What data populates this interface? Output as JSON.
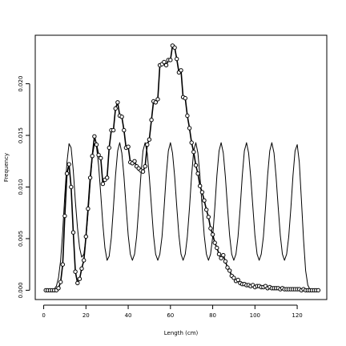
{
  "chart_data": {
    "type": "line",
    "title": "",
    "xlabel": "Length (cm)",
    "ylabel": "Frequency",
    "xlim": [
      -4,
      134
    ],
    "ylim": [
      -0.0009,
      0.0247
    ],
    "x_ticks": [
      0,
      20,
      40,
      60,
      80,
      100,
      120
    ],
    "x_tick_labels": [
      "0",
      "20",
      "40",
      "60",
      "80",
      "100",
      "120"
    ],
    "y_ticks": [
      0.0,
      0.005,
      0.01,
      0.015,
      0.02
    ],
    "y_tick_labels": [
      "0.000",
      "0.005",
      "0.010",
      "0.015",
      "0.020"
    ],
    "grid": false,
    "legend": "none",
    "series": [
      {
        "style": "points-and-lines",
        "color": "#000000",
        "x": [
          1,
          2,
          3,
          4,
          5,
          6,
          7,
          8,
          9,
          10,
          11,
          12,
          13,
          14,
          15,
          16,
          17,
          18,
          19,
          20,
          21,
          22,
          23,
          24,
          25,
          26,
          27,
          28,
          29,
          30,
          31,
          32,
          33,
          34,
          35,
          36,
          37,
          38,
          39,
          40,
          41,
          42,
          43,
          44,
          45,
          46,
          47,
          48,
          49,
          50,
          51,
          52,
          53,
          54,
          55,
          56,
          57,
          58,
          59,
          60,
          61,
          62,
          63,
          64,
          65,
          66,
          67,
          68,
          69,
          70,
          71,
          72,
          73,
          74,
          75,
          76,
          77,
          78,
          79,
          80,
          81,
          82,
          83,
          84,
          85,
          86,
          87,
          88,
          89,
          90,
          91,
          92,
          93,
          94,
          95,
          96,
          97,
          98,
          99,
          100,
          101,
          102,
          103,
          104,
          105,
          106,
          107,
          108,
          109,
          110,
          111,
          112,
          113,
          114,
          115,
          116,
          117,
          118,
          119,
          120,
          121,
          122,
          123,
          124,
          125,
          126,
          127,
          128,
          129,
          130
        ],
        "y": [
          0.0,
          0.0,
          0.0,
          0.0,
          0.0,
          0.0,
          0.0002,
          0.0008,
          0.0025,
          0.0072,
          0.0113,
          0.0122,
          0.01,
          0.0056,
          0.0018,
          0.0007,
          0.0011,
          0.0021,
          0.0029,
          0.0052,
          0.0079,
          0.0109,
          0.013,
          0.0149,
          0.0141,
          0.0131,
          0.0128,
          0.0103,
          0.0107,
          0.0109,
          0.0138,
          0.0155,
          0.0155,
          0.0176,
          0.0182,
          0.0169,
          0.0168,
          0.0155,
          0.0138,
          0.0139,
          0.0124,
          0.0123,
          0.0125,
          0.012,
          0.0118,
          0.0116,
          0.0115,
          0.012,
          0.0141,
          0.0146,
          0.0165,
          0.0183,
          0.0182,
          0.0185,
          0.0218,
          0.0219,
          0.0221,
          0.0218,
          0.0223,
          0.0223,
          0.0237,
          0.0235,
          0.0224,
          0.0211,
          0.0213,
          0.0187,
          0.0186,
          0.0169,
          0.0157,
          0.0143,
          0.0134,
          0.0121,
          0.0113,
          0.0101,
          0.0095,
          0.0087,
          0.0078,
          0.0071,
          0.006,
          0.0054,
          0.0046,
          0.0041,
          0.0035,
          0.0031,
          0.0034,
          0.0028,
          0.0022,
          0.0019,
          0.0014,
          0.0012,
          0.0009,
          0.001,
          0.0007,
          0.0006,
          0.0006,
          0.0005,
          0.0005,
          0.0004,
          0.0005,
          0.0003,
          0.0004,
          0.0004,
          0.0003,
          0.0003,
          0.0004,
          0.0002,
          0.0003,
          0.0002,
          0.0002,
          0.0002,
          0.0002,
          0.0001,
          0.0002,
          0.0001,
          0.0001,
          0.0001,
          0.0001,
          0.0001,
          0.0001,
          0.0001,
          0.0001,
          0.0,
          0.0001,
          0.0,
          0.0,
          0.0,
          0.0,
          0.0,
          0.0,
          0.0
        ]
      },
      {
        "style": "line",
        "color": "#000000",
        "x": [
          0.0,
          1.0,
          2.0,
          3.0,
          4.0,
          5.0,
          6.0,
          7.0,
          8.0,
          9.0,
          10.0,
          11.0,
          12.0,
          13.0,
          14.0,
          15.0,
          16.0,
          17.0,
          18.0,
          19.0,
          20.0,
          21.0,
          22.0,
          23.0,
          24.0,
          25.0,
          26.0,
          27.0,
          28.0,
          29.0,
          30.0,
          31.0,
          32.0,
          33.0,
          34.0,
          35.0,
          36.0,
          37.0,
          38.0,
          39.0,
          40.0,
          41.0,
          42.0,
          43.0,
          44.0,
          45.0,
          46.0,
          47.0,
          48.0,
          49.0,
          50.0,
          51.0,
          52.0,
          53.0,
          54.0,
          55.0,
          56.0,
          57.0,
          58.0,
          59.0,
          60.0,
          61.0,
          62.0,
          63.0,
          64.0,
          65.0,
          66.0,
          67.0,
          68.0,
          69.0,
          70.0,
          71.0,
          72.0,
          73.0,
          74.0,
          75.0,
          76.0,
          77.0,
          78.0,
          79.0,
          80.0,
          81.0,
          82.0,
          83.0,
          84.0,
          85.0,
          86.0,
          87.0,
          88.0,
          89.0,
          90.0,
          91.0,
          92.0,
          93.0,
          94.0,
          95.0,
          96.0,
          97.0,
          98.0,
          99.0,
          100.0,
          101.0,
          102.0,
          103.0,
          104.0,
          105.0,
          106.0,
          107.0,
          108.0,
          109.0,
          110.0,
          111.0,
          112.0,
          113.0,
          114.0,
          115.0,
          116.0,
          117.0,
          118.0,
          119.0,
          120.0,
          121.0,
          122.0,
          123.0,
          124.0,
          125.0,
          126.0,
          127.0,
          128.0,
          129.0,
          130.0
        ],
        "y": [
          0.0,
          0.0,
          0.0,
          0.0,
          0.0,
          0.0001,
          0.0004,
          0.0012,
          0.0029,
          0.0057,
          0.0092,
          0.0124,
          0.0142,
          0.0138,
          0.0116,
          0.0086,
          0.006,
          0.0041,
          0.0032,
          0.0035,
          0.005,
          0.0074,
          0.0103,
          0.0129,
          0.0142,
          0.0139,
          0.0121,
          0.0093,
          0.0064,
          0.0041,
          0.0029,
          0.0033,
          0.0051,
          0.008,
          0.0111,
          0.0135,
          0.0143,
          0.0133,
          0.011,
          0.0081,
          0.0053,
          0.0035,
          0.0029,
          0.0035,
          0.0052,
          0.008,
          0.0111,
          0.0135,
          0.0143,
          0.0133,
          0.011,
          0.0081,
          0.0053,
          0.0035,
          0.0029,
          0.0035,
          0.0052,
          0.008,
          0.0111,
          0.0135,
          0.0143,
          0.0133,
          0.011,
          0.0081,
          0.0053,
          0.0035,
          0.0029,
          0.0035,
          0.0052,
          0.008,
          0.0111,
          0.0135,
          0.0143,
          0.0133,
          0.011,
          0.0081,
          0.0053,
          0.0035,
          0.0029,
          0.0035,
          0.0052,
          0.008,
          0.0111,
          0.0135,
          0.0143,
          0.0133,
          0.011,
          0.0081,
          0.0053,
          0.0035,
          0.0029,
          0.0035,
          0.0052,
          0.008,
          0.0111,
          0.0135,
          0.0143,
          0.0133,
          0.011,
          0.0081,
          0.0053,
          0.0035,
          0.0029,
          0.0035,
          0.0052,
          0.008,
          0.0111,
          0.0135,
          0.0143,
          0.0133,
          0.011,
          0.0081,
          0.0053,
          0.0035,
          0.0029,
          0.0035,
          0.0052,
          0.008,
          0.0111,
          0.0135,
          0.0141,
          0.0124,
          0.0088,
          0.0049,
          0.0019,
          0.0005,
          0.0001,
          0.0,
          0.0,
          0.0,
          0.0
        ]
      }
    ]
  }
}
